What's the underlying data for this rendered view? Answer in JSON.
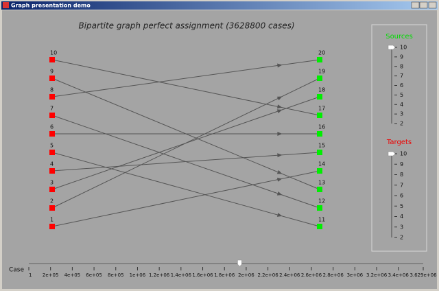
{
  "window": {
    "title": "Graph presentation demo"
  },
  "graph": {
    "title": "Bipartite graph perfect assignment (3628800 cases)",
    "sources": [
      "1",
      "2",
      "3",
      "4",
      "5",
      "6",
      "7",
      "8",
      "9",
      "10"
    ],
    "targets": [
      "11",
      "12",
      "13",
      "14",
      "15",
      "16",
      "17",
      "18",
      "19",
      "20"
    ],
    "assignment": [
      {
        "from": "1",
        "to": "14"
      },
      {
        "from": "2",
        "to": "19"
      },
      {
        "from": "3",
        "to": "18"
      },
      {
        "from": "4",
        "to": "15"
      },
      {
        "from": "5",
        "to": "11"
      },
      {
        "from": "6",
        "to": "16"
      },
      {
        "from": "7",
        "to": "12"
      },
      {
        "from": "8",
        "to": "20"
      },
      {
        "from": "9",
        "to": "13"
      },
      {
        "from": "10",
        "to": "17"
      }
    ]
  },
  "sources_slider": {
    "label": "Sources",
    "ticks": [
      2,
      3,
      4,
      5,
      6,
      7,
      8,
      9,
      10
    ],
    "value": 10
  },
  "targets_slider": {
    "label": "Targets",
    "ticks": [
      2,
      3,
      4,
      5,
      6,
      7,
      8,
      9,
      10
    ],
    "value": 10
  },
  "case_slider": {
    "label": "Case",
    "lim": [
      1,
      3628800
    ],
    "value": 1940000,
    "ticks": [
      1,
      {
        "value": 200000,
        "label": "2e+05"
      },
      {
        "value": 400000,
        "label": "4e+05"
      },
      {
        "value": 600000,
        "label": "6e+05"
      },
      {
        "value": 800000,
        "label": "8e+05"
      },
      {
        "value": 1000000,
        "label": "1e+06"
      },
      {
        "value": 1200000,
        "label": "1.2e+06"
      },
      {
        "value": 1400000,
        "label": "1.4e+06"
      },
      {
        "value": 1600000,
        "label": "1.6e+06"
      },
      {
        "value": 1800000,
        "label": "1.8e+06"
      },
      {
        "value": 2000000,
        "label": "2e+06"
      },
      {
        "value": 2200000,
        "label": "2.2e+06"
      },
      {
        "value": 2400000,
        "label": "2.4e+06"
      },
      {
        "value": 2600000,
        "label": "2.6e+06"
      },
      {
        "value": 2800000,
        "label": "2.8e+06"
      },
      {
        "value": 3000000,
        "label": "3e+06"
      },
      {
        "value": 3200000,
        "label": "3.2e+06"
      },
      {
        "value": 3400000,
        "label": "3.4e+06"
      },
      {
        "value": 3628800,
        "label": "3.629e+06"
      }
    ]
  }
}
